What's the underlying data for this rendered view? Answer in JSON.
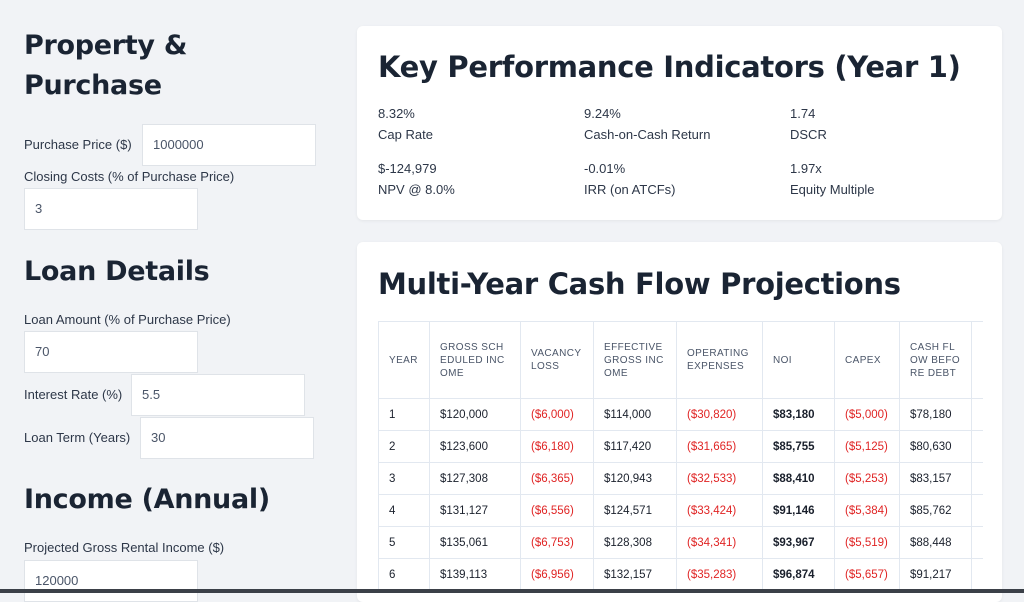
{
  "sidebar": {
    "sections": [
      {
        "title": "Property & Purchase",
        "fields": [
          {
            "label": "Purchase Price ($)",
            "value": "1000000"
          },
          {
            "label": "Closing Costs (% of Purchase Price)",
            "value": "3"
          }
        ]
      },
      {
        "title": "Loan Details",
        "fields": [
          {
            "label": "Loan Amount (% of Purchase Price)",
            "value": "70"
          },
          {
            "label": "Interest Rate (%)",
            "value": "5.5"
          },
          {
            "label": "Loan Term (Years)",
            "value": "30"
          }
        ]
      },
      {
        "title": "Income (Annual)",
        "fields": [
          {
            "label": "Projected Gross Rental Income ($)",
            "value": "120000"
          }
        ]
      }
    ]
  },
  "kpi": {
    "title": "Key Performance Indicators (Year 1)",
    "items": [
      {
        "value": "8.32%",
        "label": "Cap Rate"
      },
      {
        "value": "9.24%",
        "label": "Cash-on-Cash Return"
      },
      {
        "value": "1.74",
        "label": "DSCR"
      },
      {
        "value": "$-124,979",
        "label": "NPV @ 8.0%"
      },
      {
        "value": "-0.01%",
        "label": "IRR (on ATCFs)"
      },
      {
        "value": "1.97x",
        "label": "Equity Multiple"
      }
    ]
  },
  "cash_flow": {
    "title": "Multi-Year Cash Flow Projections",
    "columns": [
      "YEAR",
      "GROSS SCHEDULED INCOME",
      "VACANCY LOSS",
      "EFFECTIVE GROSS INCOME",
      "OPERATING EXPENSES",
      "NOI",
      "CAPEX",
      "CASH FLOW BEFORE DEBT"
    ],
    "rows": [
      [
        "1",
        "$120,000",
        "($6,000)",
        "$114,000",
        "($30,820)",
        "$83,180",
        "($5,000)",
        "$78,180"
      ],
      [
        "2",
        "$123,600",
        "($6,180)",
        "$117,420",
        "($31,665)",
        "$85,755",
        "($5,125)",
        "$80,630"
      ],
      [
        "3",
        "$127,308",
        "($6,365)",
        "$120,943",
        "($32,533)",
        "$88,410",
        "($5,253)",
        "$83,157"
      ],
      [
        "4",
        "$131,127",
        "($6,556)",
        "$124,571",
        "($33,424)",
        "$91,146",
        "($5,384)",
        "$85,762"
      ],
      [
        "5",
        "$135,061",
        "($6,753)",
        "$128,308",
        "($34,341)",
        "$93,967",
        "($5,519)",
        "$88,448"
      ],
      [
        "6",
        "$139,113",
        "($6,956)",
        "$132,157",
        "($35,283)",
        "$96,874",
        "($5,657)",
        "$91,217"
      ]
    ]
  }
}
